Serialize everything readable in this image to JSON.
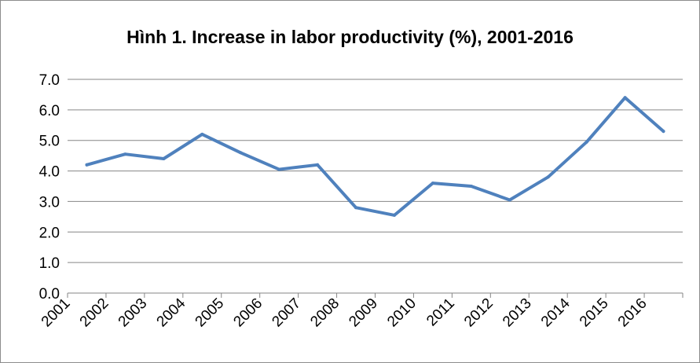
{
  "chart_data": {
    "type": "line",
    "title": "Hình 1. Increase in labor productivity (%), 2001-2016",
    "xlabel": "",
    "ylabel": "",
    "categories": [
      "2001",
      "2002",
      "2003",
      "2004",
      "2005",
      "2006",
      "2007",
      "2008",
      "2009",
      "2010",
      "2011",
      "2012",
      "2013",
      "2014",
      "2015",
      "2016"
    ],
    "series": [
      {
        "values": [
          4.2,
          4.55,
          4.4,
          5.2,
          4.6,
          4.05,
          4.2,
          2.8,
          2.55,
          3.6,
          3.5,
          3.05,
          3.8,
          4.95,
          6.4,
          5.3
        ]
      }
    ],
    "ylim": [
      0,
      7
    ],
    "yticks": [
      "0.0",
      "1.0",
      "2.0",
      "3.0",
      "4.0",
      "5.0",
      "6.0",
      "7.0"
    ],
    "grid": true,
    "legend": "none",
    "line_color": "#4f81bd",
    "grid_color": "#868686"
  }
}
